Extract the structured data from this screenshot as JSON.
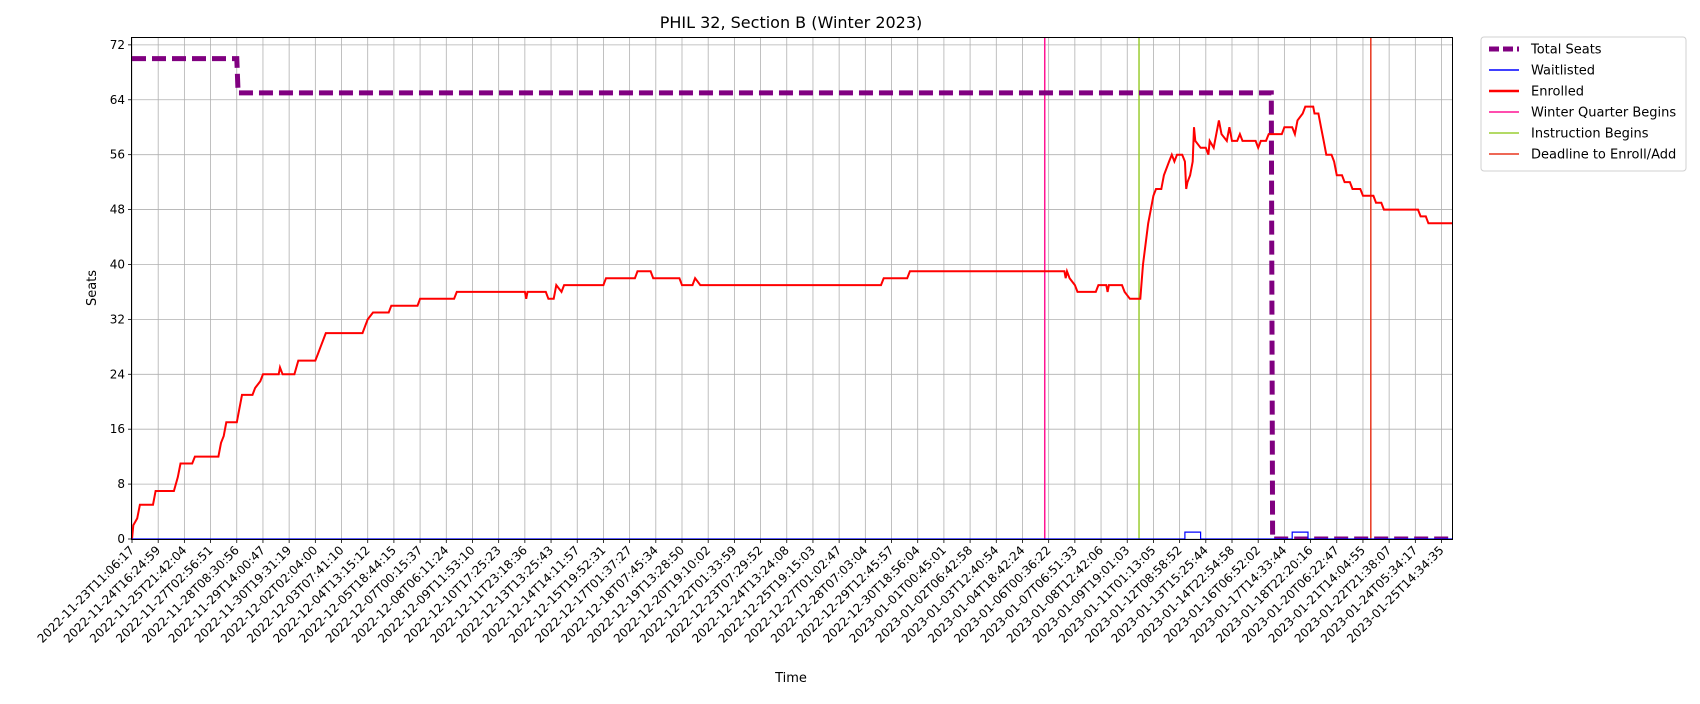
{
  "chart_data": {
    "type": "line",
    "title": "PHIL 32, Section B (Winter 2023)",
    "xlabel": "Time",
    "ylabel": "Seats",
    "ylim": [
      0,
      73
    ],
    "yticks": [
      0,
      8,
      16,
      24,
      32,
      40,
      48,
      56,
      64,
      72
    ],
    "grid": true,
    "legend_position": "outside-top-right",
    "x_tick_labels": [
      "2022-11-23T11:06:17",
      "2022-11-24T16:24:59",
      "2022-11-25T21:42:04",
      "2022-11-27T02:56:51",
      "2022-11-28T08:30:56",
      "2022-11-29T14:00:47",
      "2022-11-30T19:31:19",
      "2022-12-02T02:04:00",
      "2022-12-03T07:41:10",
      "2022-12-04T13:15:12",
      "2022-12-05T18:44:15",
      "2022-12-07T00:15:37",
      "2022-12-08T06:11:24",
      "2022-12-09T11:53:10",
      "2022-12-10T17:25:23",
      "2022-12-11T23:18:36",
      "2022-12-13T13:25:43",
      "2022-12-14T14:11:57",
      "2022-12-15T19:52:31",
      "2022-12-17T01:37:27",
      "2022-12-18T07:45:34",
      "2022-12-19T13:28:50",
      "2022-12-20T19:10:02",
      "2022-12-22T01:33:59",
      "2022-12-23T07:29:52",
      "2022-12-24T13:24:08",
      "2022-12-25T19:15:03",
      "2022-12-27T01:02:47",
      "2022-12-28T07:03:04",
      "2022-12-29T12:45:57",
      "2022-12-30T18:56:04",
      "2023-01-01T00:45:01",
      "2023-01-02T06:42:58",
      "2023-01-03T12:40:54",
      "2023-01-04T18:42:24",
      "2023-01-06T00:36:22",
      "2023-01-07T06:51:33",
      "2023-01-08T12:42:06",
      "2023-01-09T19:01:03",
      "2023-01-11T01:13:05",
      "2023-01-12T08:58:52",
      "2023-01-13T15:25:44",
      "2023-01-14T22:54:58",
      "2023-01-16T06:52:02",
      "2023-01-17T14:33:44",
      "2023-01-18T22:20:16",
      "2023-01-20T06:22:47",
      "2023-01-21T14:04:55",
      "2023-01-22T21:38:07",
      "2023-01-24T05:34:17",
      "2023-01-25T14:34:35"
    ],
    "x_range": [
      0,
      50.4
    ],
    "series": [
      {
        "name": "Total Seats",
        "color": "#800080",
        "style": "dashed",
        "points": [
          [
            0,
            70
          ],
          [
            4.0,
            70
          ],
          [
            4.05,
            65
          ],
          [
            43.5,
            65
          ],
          [
            43.55,
            0
          ],
          [
            50.4,
            0
          ]
        ]
      },
      {
        "name": "Waitlisted",
        "color": "#0000ff",
        "style": "solid",
        "points": [
          [
            0,
            0
          ],
          [
            40.2,
            0
          ],
          [
            40.2,
            1
          ],
          [
            40.8,
            1
          ],
          [
            40.8,
            0
          ],
          [
            44.3,
            0
          ],
          [
            44.3,
            1
          ],
          [
            44.9,
            1
          ],
          [
            44.9,
            0
          ],
          [
            50.4,
            0
          ]
        ]
      },
      {
        "name": "Enrolled",
        "color": "#ff0000",
        "style": "solid",
        "points": [
          [
            0,
            0
          ],
          [
            0.05,
            2
          ],
          [
            0.2,
            3
          ],
          [
            0.3,
            5
          ],
          [
            0.8,
            5
          ],
          [
            0.9,
            7
          ],
          [
            1.6,
            7
          ],
          [
            1.75,
            9
          ],
          [
            1.85,
            11
          ],
          [
            2.3,
            11
          ],
          [
            2.4,
            12
          ],
          [
            3.3,
            12
          ],
          [
            3.4,
            14
          ],
          [
            3.5,
            15
          ],
          [
            3.6,
            17
          ],
          [
            4.0,
            17
          ],
          [
            4.1,
            19
          ],
          [
            4.2,
            21
          ],
          [
            4.6,
            21
          ],
          [
            4.7,
            22
          ],
          [
            4.9,
            23
          ],
          [
            5.0,
            24
          ],
          [
            5.6,
            24
          ],
          [
            5.65,
            25
          ],
          [
            5.75,
            24
          ],
          [
            6.2,
            24
          ],
          [
            6.35,
            26
          ],
          [
            7.0,
            26
          ],
          [
            7.1,
            27
          ],
          [
            7.2,
            28
          ],
          [
            7.3,
            29
          ],
          [
            7.4,
            30
          ],
          [
            8.8,
            30
          ],
          [
            8.9,
            31
          ],
          [
            9.0,
            32
          ],
          [
            9.2,
            33
          ],
          [
            9.8,
            33
          ],
          [
            9.9,
            34
          ],
          [
            10.9,
            34
          ],
          [
            11.0,
            35
          ],
          [
            12.3,
            35
          ],
          [
            12.4,
            36
          ],
          [
            15.0,
            36
          ],
          [
            15.05,
            35
          ],
          [
            15.1,
            36
          ],
          [
            15.8,
            36
          ],
          [
            15.9,
            35
          ],
          [
            16.1,
            35
          ],
          [
            16.2,
            37
          ],
          [
            16.4,
            36
          ],
          [
            16.5,
            37
          ],
          [
            18.0,
            37
          ],
          [
            18.1,
            38
          ],
          [
            19.2,
            38
          ],
          [
            19.3,
            39
          ],
          [
            19.8,
            39
          ],
          [
            19.9,
            38
          ],
          [
            20.9,
            38
          ],
          [
            21.0,
            37
          ],
          [
            21.4,
            37
          ],
          [
            21.5,
            38
          ],
          [
            21.7,
            37
          ],
          [
            28.6,
            37
          ],
          [
            28.7,
            38
          ],
          [
            29.6,
            38
          ],
          [
            29.7,
            39
          ],
          [
            35.6,
            39
          ],
          [
            35.65,
            38
          ],
          [
            35.7,
            39
          ],
          [
            35.8,
            38
          ],
          [
            36.0,
            37
          ],
          [
            36.1,
            36
          ],
          [
            36.8,
            36
          ],
          [
            36.9,
            37
          ],
          [
            37.2,
            37
          ],
          [
            37.25,
            36
          ],
          [
            37.3,
            37
          ],
          [
            37.8,
            37
          ],
          [
            37.9,
            36
          ],
          [
            38.1,
            35
          ],
          [
            38.5,
            35
          ],
          [
            38.6,
            40
          ],
          [
            38.7,
            43
          ],
          [
            38.8,
            46
          ],
          [
            38.9,
            48
          ],
          [
            39.0,
            50
          ],
          [
            39.1,
            51
          ],
          [
            39.3,
            51
          ],
          [
            39.4,
            53
          ],
          [
            39.5,
            54
          ],
          [
            39.6,
            55
          ],
          [
            39.7,
            56
          ],
          [
            39.8,
            55
          ],
          [
            39.9,
            56
          ],
          [
            40.1,
            56
          ],
          [
            40.2,
            55
          ],
          [
            40.25,
            51
          ],
          [
            40.3,
            52
          ],
          [
            40.4,
            53
          ],
          [
            40.5,
            55
          ],
          [
            40.55,
            60
          ],
          [
            40.6,
            58
          ],
          [
            40.8,
            57
          ],
          [
            41.0,
            57
          ],
          [
            41.1,
            56
          ],
          [
            41.15,
            58
          ],
          [
            41.3,
            57
          ],
          [
            41.4,
            59
          ],
          [
            41.5,
            61
          ],
          [
            41.6,
            59
          ],
          [
            41.8,
            58
          ],
          [
            41.9,
            60
          ],
          [
            42.0,
            58
          ],
          [
            42.2,
            58
          ],
          [
            42.3,
            59
          ],
          [
            42.4,
            58
          ],
          [
            42.9,
            58
          ],
          [
            43.0,
            57
          ],
          [
            43.1,
            58
          ],
          [
            43.3,
            58
          ],
          [
            43.4,
            59
          ],
          [
            43.9,
            59
          ],
          [
            44.0,
            60
          ],
          [
            44.3,
            60
          ],
          [
            44.4,
            59
          ],
          [
            44.5,
            61
          ],
          [
            44.7,
            62
          ],
          [
            44.8,
            63
          ],
          [
            45.1,
            63
          ],
          [
            45.15,
            62
          ],
          [
            45.3,
            62
          ],
          [
            45.4,
            60
          ],
          [
            45.5,
            58
          ],
          [
            45.6,
            56
          ],
          [
            45.8,
            56
          ],
          [
            45.9,
            55
          ],
          [
            46.0,
            53
          ],
          [
            46.2,
            53
          ],
          [
            46.3,
            52
          ],
          [
            46.5,
            52
          ],
          [
            46.6,
            51
          ],
          [
            46.9,
            51
          ],
          [
            47.0,
            50
          ],
          [
            47.4,
            50
          ],
          [
            47.5,
            49
          ],
          [
            47.7,
            49
          ],
          [
            47.8,
            48
          ],
          [
            49.1,
            48
          ],
          [
            49.2,
            47
          ],
          [
            49.4,
            47
          ],
          [
            49.5,
            46
          ],
          [
            50.8,
            46
          ],
          [
            50.9,
            44
          ],
          [
            51.3,
            44
          ],
          [
            51.4,
            43
          ],
          [
            51.6,
            43
          ]
        ]
      }
    ],
    "events": [
      {
        "name": "Winter Quarter Begins",
        "x": 34.85,
        "color": "#ff1493"
      },
      {
        "name": "Instruction Begins",
        "x": 38.45,
        "color": "#9acd32"
      },
      {
        "name": "Deadline to Enroll/Add",
        "x": 47.3,
        "color": "#e8361e"
      }
    ]
  }
}
